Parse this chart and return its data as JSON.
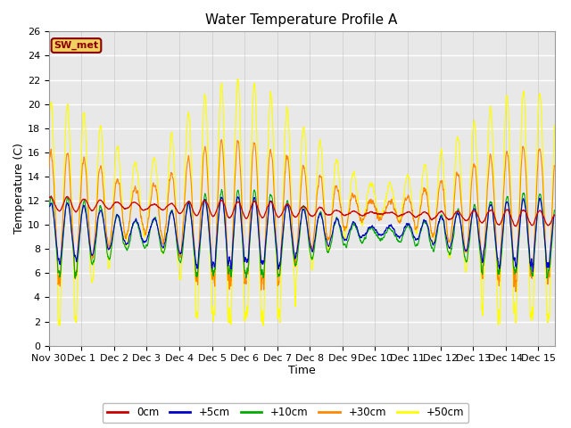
{
  "title": "Water Temperature Profile A",
  "xlabel": "Time",
  "ylabel": "Temperature (C)",
  "ylim": [
    0,
    26
  ],
  "yticks": [
    0,
    2,
    4,
    6,
    8,
    10,
    12,
    14,
    16,
    18,
    20,
    22,
    24,
    26
  ],
  "xtick_labels": [
    "Nov 30",
    "Dec 1",
    "Dec 2",
    "Dec 3",
    "Dec 4",
    "Dec 5",
    "Dec 6",
    "Dec 7",
    "Dec 8",
    "Dec 9",
    "Dec 10",
    "Dec 11",
    "Dec 12",
    "Dec 13",
    "Dec 14",
    "Dec 15"
  ],
  "series_colors": {
    "0cm": "#cc0000",
    "+5cm": "#0000cc",
    "+10cm": "#00aa00",
    "+30cm": "#ff8800",
    "+50cm": "#ffff00"
  },
  "legend_label": "SW_met",
  "background_color": "#e8e8e8",
  "grid_color": "#ffffff",
  "title_fontsize": 11,
  "axis_fontsize": 9,
  "tick_fontsize": 8
}
